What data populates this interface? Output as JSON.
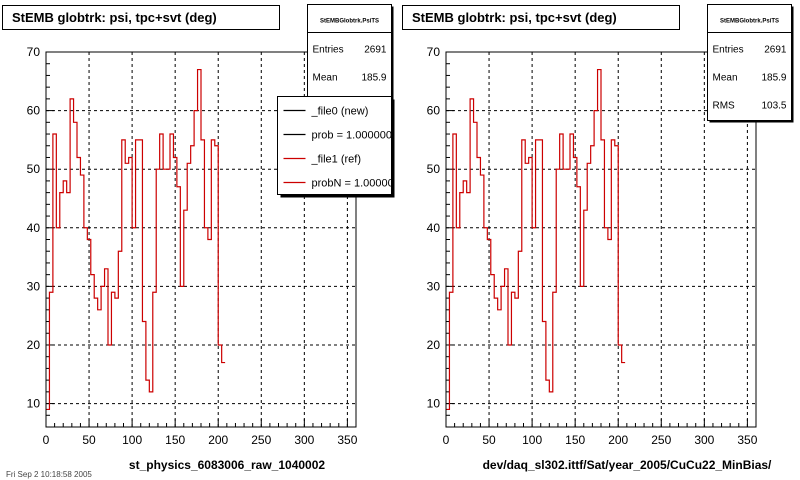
{
  "panels": [
    {
      "title": "StEMB globtrk: psi, tpc+svt (deg)",
      "xlabel": "st_physics_6083006_raw_1040002",
      "stats": {
        "name": "StEMBGlobtrk.PsiTS",
        "rows": [
          {
            "label": "Entries",
            "value": "2691"
          },
          {
            "label": "Mean",
            "value": "185.9"
          },
          {
            "label": "RMS",
            "value": "103.5"
          }
        ]
      },
      "legend": [
        {
          "label": "_file0 (new)",
          "color": "#000000"
        },
        {
          "label": "prob = 1.000000",
          "color": "#000000"
        },
        {
          "label": "_file1 (ref)",
          "color": "#cc0000"
        },
        {
          "label": "probN = 1.000000",
          "color": "#cc0000"
        }
      ]
    },
    {
      "title": "StEMB globtrk: psi, tpc+svt (deg)",
      "xlabel": "dev/daq_sl302.ittf/Sat/year_2005/CuCu22_MinBias/",
      "stats": {
        "name": "StEMBGlobtrk.PsiTS",
        "rows": [
          {
            "label": "Entries",
            "value": "2691"
          },
          {
            "label": "Mean",
            "value": "185.9"
          },
          {
            "label": "RMS",
            "value": "103.5"
          }
        ]
      },
      "legend": []
    }
  ],
  "footer_text": "Fri Sep 2 10:18:58 2005",
  "chart_data": {
    "type": "line",
    "step": true,
    "title": "StEMB globtrk: psi, tpc+svt (deg)",
    "xlim": [
      0,
      360
    ],
    "ylim": [
      6,
      70
    ],
    "xticks": [
      0,
      50,
      100,
      150,
      200,
      250,
      300,
      350
    ],
    "yticks": [
      10,
      20,
      30,
      40,
      50,
      60,
      70
    ],
    "grid": true,
    "bin_width": 4,
    "series": [
      {
        "name": "_file1 (ref)",
        "color": "#cc0000",
        "values": [
          9,
          29,
          56,
          40,
          46,
          48,
          46,
          62,
          58,
          52,
          49,
          40,
          38,
          32,
          28,
          26,
          30,
          33,
          20,
          29,
          28,
          36,
          55,
          51,
          52,
          40,
          55,
          55,
          24,
          14,
          12,
          29,
          50,
          56,
          50,
          50,
          56,
          52,
          47,
          30,
          43,
          51,
          54,
          60,
          67,
          55,
          40,
          38,
          55,
          54,
          20,
          17
        ]
      }
    ]
  }
}
